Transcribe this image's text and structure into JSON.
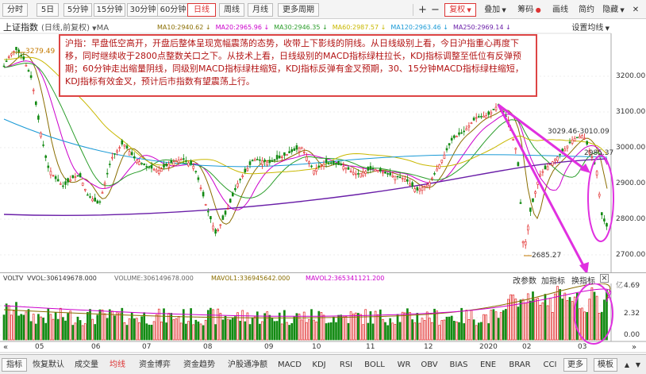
{
  "toolbar": {
    "periods": [
      "分时",
      "5日",
      "5分钟",
      "15分钟",
      "30分钟",
      "60分钟",
      "日线",
      "周线",
      "月线",
      "更多周期"
    ],
    "plus": "+",
    "minus": "−",
    "fq": "复权",
    "overlay": "叠加",
    "chips": "筹码",
    "draw": "画线",
    "simple": "简约",
    "hide": "隐藏",
    "up_icon": "▲",
    "down_icon": "▼",
    "close_icon": "✕"
  },
  "chart_header": {
    "title": "上证指数",
    "subtitle": "(日线,前复权)",
    "ma_tag": "MA",
    "settings": "设置均线"
  },
  "ma_legend": [
    {
      "label": "MA10:2940.62",
      "arrow": "↓",
      "color": "#8a6d00"
    },
    {
      "label": "MA20:2965.96",
      "arrow": "↓",
      "color": "#cc00cc"
    },
    {
      "label": "MA30:2946.35",
      "arrow": "↓",
      "color": "#2a9d2a"
    },
    {
      "label": "MA60:2987.57",
      "arrow": "↓",
      "color": "#c9b800"
    },
    {
      "label": "MA120:2963.46",
      "arrow": "↓",
      "color": "#1a9ad6"
    },
    {
      "label": "MA250:2969.14",
      "arrow": "↓",
      "color": "#6a1fa8"
    }
  ],
  "annotation": "沪指：早盘低空高开，开盘后整体呈现宽幅震荡的态势，收带上下影线的阴线。从日线级别上看，今日沪指重心再度下移，同时继续收于2800点整数关口之下。从技术上看，日线级别的MACD指标绿柱拉长，KDJ指标调整至低位有反弹预期；60分钟走出缩量阴线，同级别MACD指标绿柱缩短，KDJ指标反弹有金叉预期，30、15分钟MACD指标绿柱缩短，KDJ指标有效金叉，预计后市指数有望震荡上行。",
  "price_marks": {
    "high_label": "3279.49",
    "low_label": "2685.27",
    "peak_label": "3029.46-3010.09",
    "mid_label": "2985.37"
  },
  "price_axis": [
    "3200.00",
    "3100.00",
    "3000.00",
    "2900.00",
    "2800.00",
    "2700.00"
  ],
  "volume": {
    "label": "VOLTV",
    "vvol": "VVOL:306149678.000",
    "volume": "VOLUME:306149678.000",
    "mavol1": "MAVOL1:336945642.000",
    "mavol2": "MAVOL2:365341121.200",
    "tools": [
      "改参数",
      "加指标",
      "换指标"
    ],
    "close": "×",
    "axis": [
      "4.69",
      "2.32",
      "0.00"
    ],
    "unit_tag": "亿"
  },
  "xaxis": [
    "05",
    "06",
    "07",
    "08",
    "09",
    "10",
    "11",
    "12",
    "2020",
    "02",
    "03"
  ],
  "tabs": [
    "指标",
    "恢复默认",
    "成交量",
    "均线",
    "资金博弈",
    "资金趋势",
    "沪股通净额",
    "MACD",
    "KDJ",
    "RSI",
    "BOLL",
    "WR",
    "OBV",
    "BIAS",
    "ENE",
    "BRAR",
    "CCI",
    "更多",
    "模板"
  ],
  "colors": {
    "up": "#e02424",
    "down": "#138a13",
    "accent": "#d33",
    "annot_border": "#d44",
    "arrow": "#e030e0"
  }
}
